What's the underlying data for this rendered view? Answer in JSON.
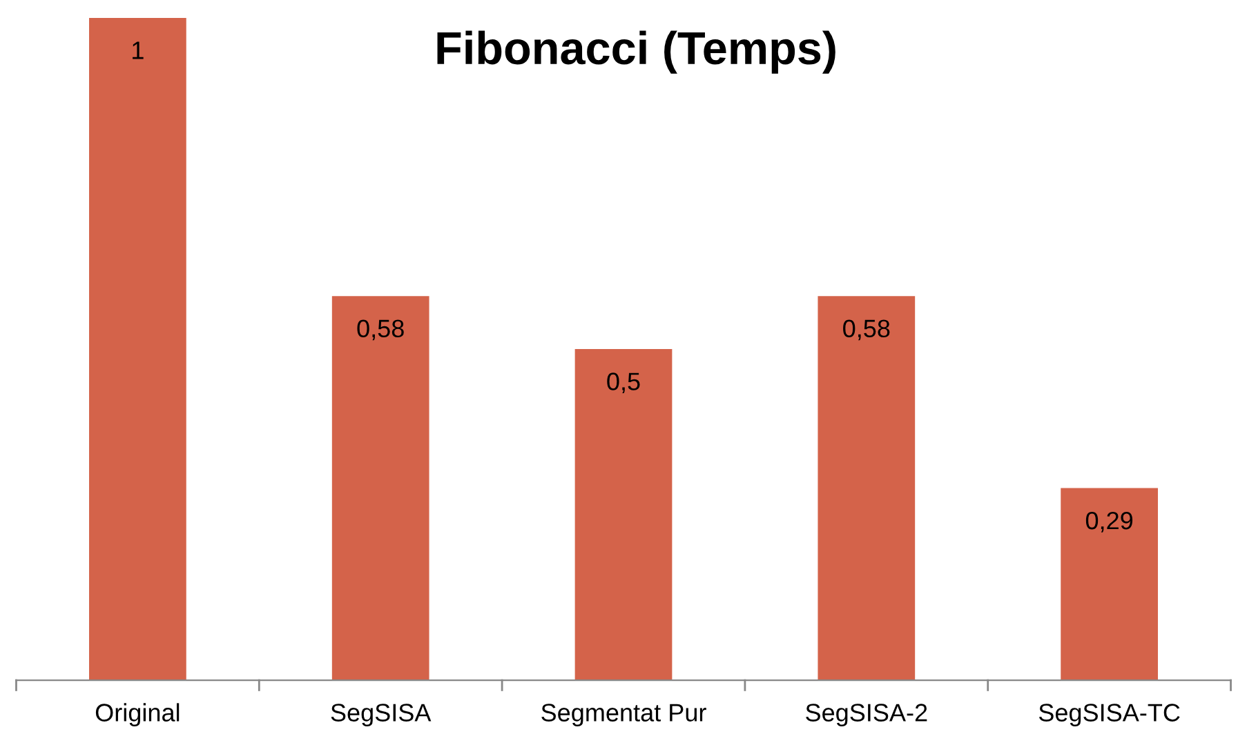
{
  "chart_data": {
    "type": "bar",
    "title": "Fibonacci (Temps)",
    "categories": [
      "Original",
      "SegSISA",
      "Segmentat Pur",
      "SegSISA-2",
      "SegSISA-TC"
    ],
    "values": [
      1,
      0.58,
      0.5,
      0.58,
      0.29
    ],
    "value_labels": [
      "1",
      "0,58",
      "0,5",
      "0,58",
      "0,29"
    ],
    "color": "#d4634a",
    "grid": false,
    "legend": false
  }
}
